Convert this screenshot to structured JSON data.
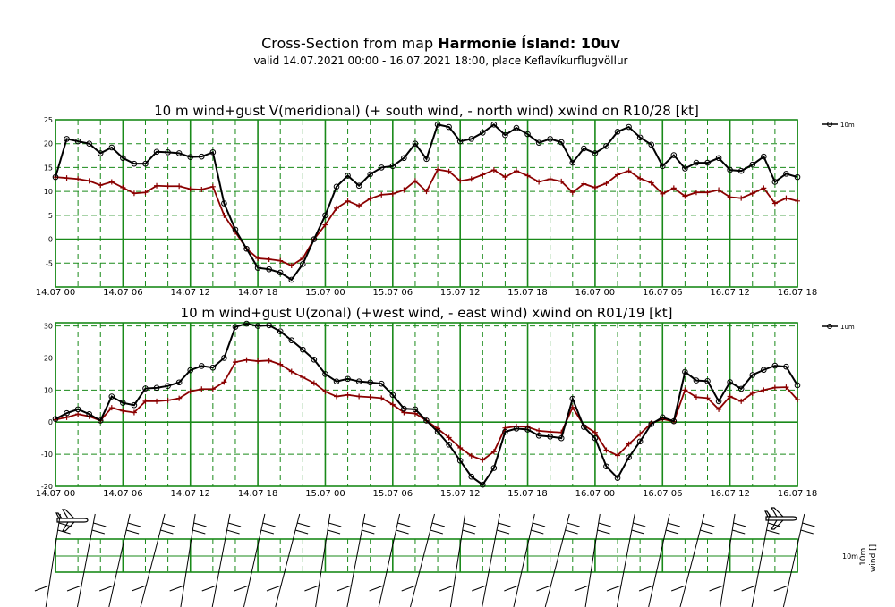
{
  "header": {
    "title_prefix": "Cross-Section from map ",
    "title_bold": "Harmonie Ísland: 10uv",
    "subtitle": "valid 14.07.2021 00:00 - 16.07.2021 18:00, place Keflavíkurflugvöllur"
  },
  "colors": {
    "grid": "#1a8a1a",
    "series_10m": "#000000",
    "series_mean": "#8b0000",
    "barb": "#000000"
  },
  "x_tick_labels": [
    "14.07 00",
    "14.07 06",
    "14.07 12",
    "14.07 18",
    "15.07 00",
    "15.07 06",
    "15.07 12",
    "15.07 18",
    "16.07 00",
    "16.07 06",
    "16.07 12",
    "16.07 18"
  ],
  "chart_data": [
    {
      "type": "line",
      "title": "10 m wind+gust V(meridional) (+ south wind, - north wind) xwind on R10/28 [kt]",
      "x_unit": "hours since 14.07 00",
      "ylim": [
        -10,
        25
      ],
      "yticks": [
        25,
        20,
        15,
        10,
        5,
        0,
        -5
      ],
      "grid": true,
      "legend": {
        "position": "top-right",
        "entries": [
          "10m"
        ]
      },
      "x": [
        0,
        1,
        2,
        3,
        4,
        5,
        6,
        7,
        8,
        9,
        10,
        11,
        12,
        13,
        14,
        15,
        16,
        17,
        18,
        19,
        20,
        21,
        22,
        23,
        24,
        25,
        26,
        27,
        28,
        29,
        30,
        31,
        32,
        33,
        34,
        35,
        36,
        37,
        38,
        39,
        40,
        41,
        42,
        43,
        44,
        45,
        46,
        47,
        48,
        49,
        50,
        51,
        52,
        53,
        54,
        55,
        56,
        57,
        58,
        59,
        60,
        61,
        62,
        63,
        64,
        65,
        66
      ],
      "series": [
        {
          "name": "10m",
          "color": "#000000",
          "marker": "circle",
          "values": [
            13,
            21,
            20.5,
            20,
            18,
            19.2,
            17,
            15.8,
            15.8,
            18.3,
            18.2,
            18,
            17.2,
            17.3,
            18.2,
            7.5,
            2,
            -2,
            -6,
            -6.3,
            -7,
            -8.5,
            -5.2,
            0,
            5,
            11,
            13.3,
            11.2,
            13.6,
            15,
            15.3,
            17,
            20,
            16.8,
            24,
            23.5,
            20.5,
            21,
            22.3,
            24,
            21.8,
            23.3,
            22,
            20.2,
            21,
            20.3,
            16,
            19,
            18,
            19.5,
            22.5,
            23.5,
            21.3,
            19.8,
            15.3,
            17.6,
            14.8,
            16,
            16,
            17,
            14.5,
            14.3,
            15.6,
            17.3,
            12,
            13.7,
            13
          ]
        },
        {
          "name": "",
          "color": "#8b0000",
          "marker": "plus",
          "values": [
            13,
            12.8,
            12.6,
            12.2,
            11.3,
            12,
            10.8,
            9.6,
            9.8,
            11.2,
            11.1,
            11.1,
            10.5,
            10.4,
            11,
            5,
            1.5,
            -2,
            -4,
            -4.2,
            -4.5,
            -5.5,
            -4,
            0,
            3,
            6.5,
            8,
            7,
            8.5,
            9.3,
            9.5,
            10.3,
            12.2,
            10,
            14.6,
            14.2,
            12.2,
            12.6,
            13.5,
            14.5,
            13,
            14.3,
            13.3,
            12,
            12.6,
            12.1,
            9.8,
            11.6,
            10.8,
            11.7,
            13.5,
            14.3,
            12.7,
            11.8,
            9.5,
            10.7,
            9,
            9.8,
            9.8,
            10.3,
            8.8,
            8.6,
            9.6,
            10.7,
            7.5,
            8.6,
            8
          ]
        }
      ]
    },
    {
      "type": "line",
      "title": "10 m wind+gust U(zonal) (+west wind, - east wind) xwind on R01/19 [kt]",
      "x_unit": "hours since 14.07 00",
      "ylim": [
        -20,
        31
      ],
      "yticks": [
        30,
        20,
        10,
        0,
        -10,
        -20
      ],
      "grid": true,
      "legend": {
        "position": "top-right",
        "entries": [
          "10m"
        ]
      },
      "x": [
        0,
        1,
        2,
        3,
        4,
        5,
        6,
        7,
        8,
        9,
        10,
        11,
        12,
        13,
        14,
        15,
        16,
        17,
        18,
        19,
        20,
        21,
        22,
        23,
        24,
        25,
        26,
        27,
        28,
        29,
        30,
        31,
        32,
        33,
        34,
        35,
        36,
        37,
        38,
        39,
        40,
        41,
        42,
        43,
        44,
        45,
        46,
        47,
        48,
        49,
        50,
        51,
        52,
        53,
        54,
        55,
        56,
        57,
        58,
        59,
        60,
        61,
        62,
        63,
        64,
        65,
        66
      ],
      "series": [
        {
          "name": "10m",
          "color": "#000000",
          "marker": "circle",
          "values": [
            1,
            2.8,
            4,
            2.5,
            0.5,
            8,
            6,
            5.3,
            10.5,
            10.7,
            11.3,
            12.4,
            16.2,
            17.5,
            17,
            20,
            29.7,
            30.7,
            30,
            30.2,
            28.3,
            25.5,
            22.6,
            19.5,
            15,
            12.7,
            13.5,
            12.7,
            12.4,
            12,
            8.5,
            4.2,
            4,
            0.5,
            -3,
            -7,
            -12,
            -17,
            -19.5,
            -14.3,
            -3,
            -2,
            -2.3,
            -4.2,
            -4.5,
            -5,
            7.3,
            -1.5,
            -5,
            -13.8,
            -17.4,
            -11,
            -6,
            -0.6,
            1.5,
            0.3,
            15.7,
            13,
            12.8,
            6.5,
            12.5,
            10.4,
            14.7,
            16.3,
            17.6,
            17.3,
            11.5
          ]
        },
        {
          "name": "",
          "color": "#8b0000",
          "marker": "plus",
          "values": [
            0.8,
            1.5,
            2.5,
            1.8,
            0.5,
            4.5,
            3.5,
            3,
            6.5,
            6.5,
            6.8,
            7.4,
            9.6,
            10.3,
            10.3,
            12.5,
            18.7,
            19.4,
            19,
            19.2,
            18,
            15.8,
            14,
            12.2,
            9.5,
            8,
            8.5,
            8,
            7.8,
            7.5,
            5.5,
            3,
            2.7,
            0.5,
            -2,
            -4.8,
            -8,
            -10.5,
            -11.8,
            -9.2,
            -1.8,
            -1.3,
            -1.5,
            -2.7,
            -3,
            -3.2,
            4.6,
            -1,
            -3.2,
            -8.7,
            -10.4,
            -6.8,
            -3.7,
            -0.3,
            1,
            0.2,
            10,
            7.8,
            7.5,
            4,
            8,
            6.5,
            9,
            10,
            10.8,
            10.9,
            7
          ]
        }
      ]
    },
    {
      "type": "barbs",
      "title": "",
      "labels": {
        "level": "10m",
        "quantity": "wind",
        "unit_glyph": "[]"
      },
      "x": [
        0,
        3,
        6,
        9,
        12,
        15,
        18,
        21,
        24,
        27,
        30,
        33,
        36,
        39,
        42,
        45,
        48,
        51,
        54,
        57,
        60,
        63,
        66
      ]
    }
  ]
}
